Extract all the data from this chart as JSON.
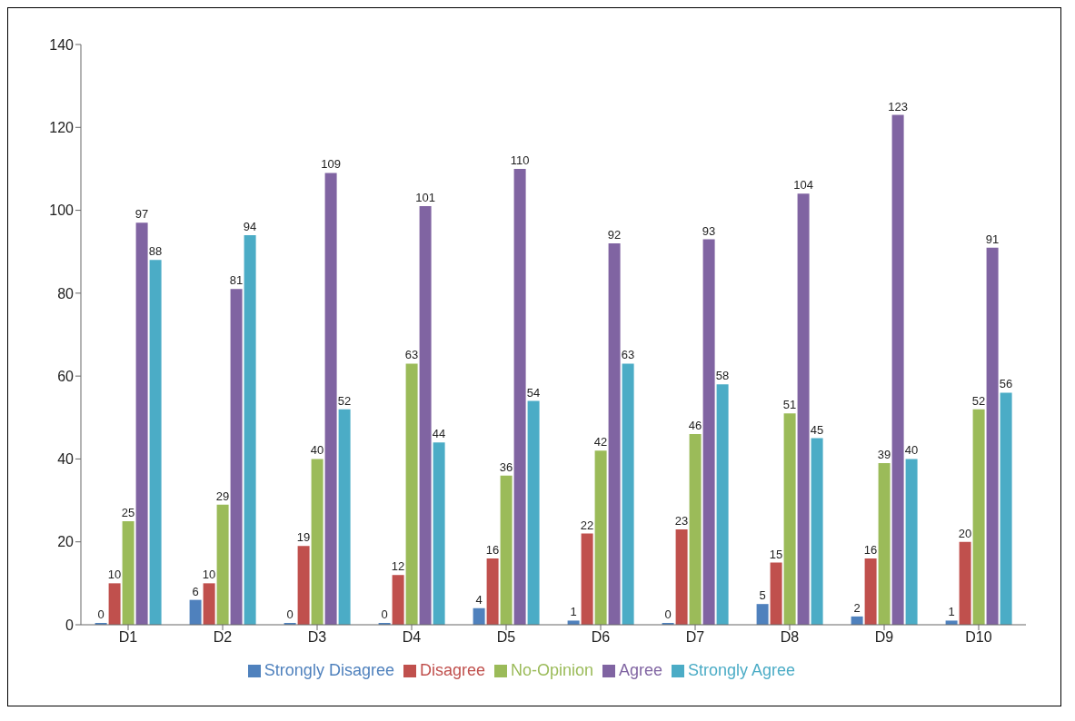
{
  "chart_data": {
    "type": "bar",
    "categories": [
      "D1",
      "D2",
      "D3",
      "D4",
      "D5",
      "D6",
      "D7",
      "D8",
      "D9",
      "D10"
    ],
    "series": [
      {
        "name": "Strongly Disagree",
        "color": "#4f81bd",
        "values": [
          0,
          6,
          0,
          0,
          4,
          1,
          0,
          5,
          2,
          1
        ]
      },
      {
        "name": "Disagree",
        "color": "#c0504d",
        "values": [
          10,
          10,
          19,
          12,
          16,
          22,
          23,
          15,
          16,
          20
        ]
      },
      {
        "name": "No-Opinion",
        "color": "#9bbb59",
        "values": [
          25,
          29,
          40,
          63,
          36,
          42,
          46,
          51,
          39,
          52
        ]
      },
      {
        "name": "Agree",
        "color": "#8064a2",
        "values": [
          97,
          81,
          109,
          101,
          110,
          92,
          93,
          104,
          123,
          91
        ]
      },
      {
        "name": "Strongly Agree",
        "color": "#4bacc6",
        "values": [
          88,
          94,
          52,
          44,
          54,
          63,
          58,
          45,
          40,
          56
        ]
      }
    ],
    "ylim": [
      0,
      140
    ],
    "yticks": [
      0,
      20,
      40,
      60,
      80,
      100,
      120,
      140
    ],
    "data_labels": true,
    "legend": "bottom",
    "grid": false
  }
}
